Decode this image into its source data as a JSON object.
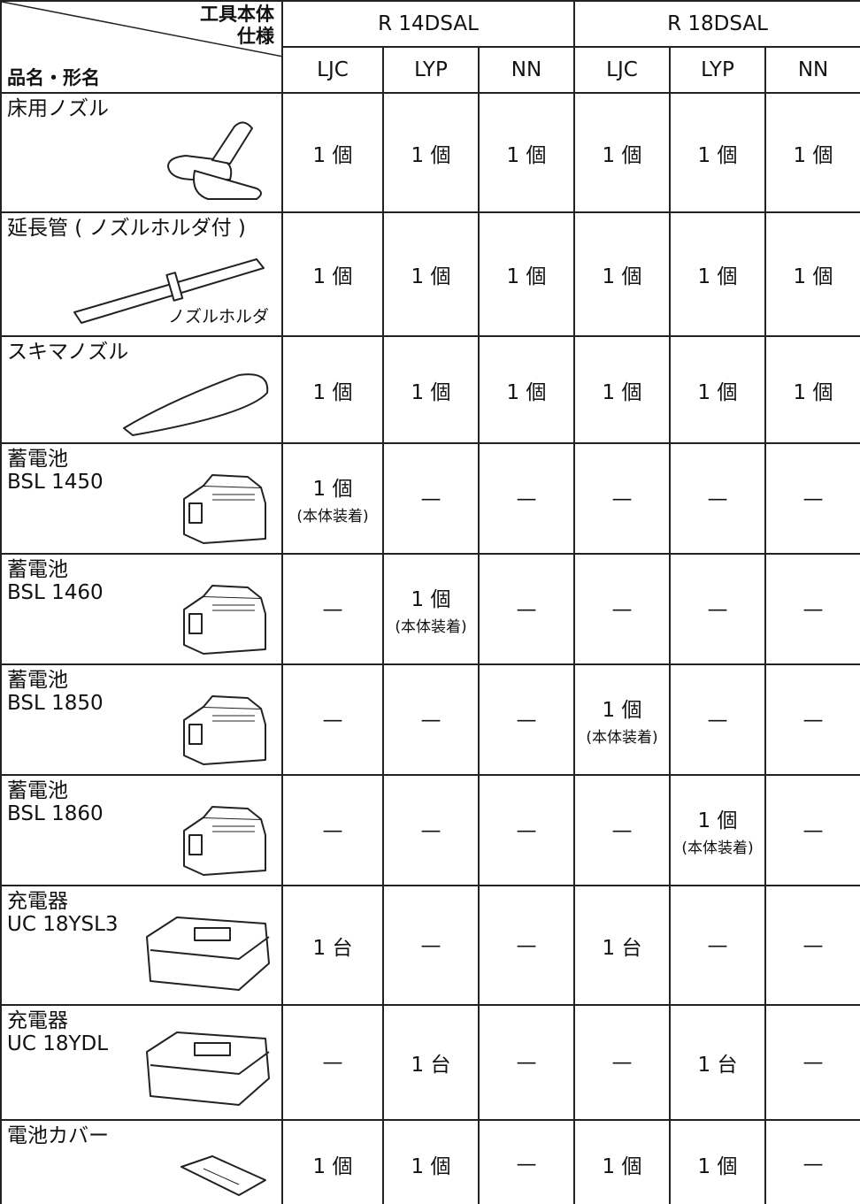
{
  "header": {
    "corner_top": [
      "工具本体",
      "仕様"
    ],
    "corner_bottom": "品名・形名",
    "groups": [
      "R 14DSAL",
      "R 18DSAL"
    ],
    "columns": [
      "LJC",
      "LYP",
      "NN",
      "LJC",
      "LYP",
      "NN"
    ]
  },
  "rows": [
    {
      "name": [
        "床用ノズル"
      ],
      "cells": [
        [
          "1 個"
        ],
        [
          "1 個"
        ],
        [
          "1 個"
        ],
        [
          "1 個"
        ],
        [
          "1 個"
        ],
        [
          "1 個"
        ]
      ]
    },
    {
      "name": [
        "延長管 ( ノズルホルダ付 )"
      ],
      "image_label": "ノズルホルダ",
      "cells": [
        [
          "1 個"
        ],
        [
          "1 個"
        ],
        [
          "1 個"
        ],
        [
          "1 個"
        ],
        [
          "1 個"
        ],
        [
          "1 個"
        ]
      ]
    },
    {
      "name": [
        "スキマノズル"
      ],
      "cells": [
        [
          "1 個"
        ],
        [
          "1 個"
        ],
        [
          "1 個"
        ],
        [
          "1 個"
        ],
        [
          "1 個"
        ],
        [
          "1 個"
        ]
      ]
    },
    {
      "name": [
        "蓄電池",
        "BSL 1450"
      ],
      "cells": [
        [
          "1 個",
          "(本体装着)"
        ],
        [
          "—"
        ],
        [
          "—"
        ],
        [
          "—"
        ],
        [
          "—"
        ],
        [
          "—"
        ]
      ]
    },
    {
      "name": [
        "蓄電池",
        "BSL 1460"
      ],
      "cells": [
        [
          "—"
        ],
        [
          "1 個",
          "(本体装着)"
        ],
        [
          "—"
        ],
        [
          "—"
        ],
        [
          "—"
        ],
        [
          "—"
        ]
      ]
    },
    {
      "name": [
        "蓄電池",
        "BSL 1850"
      ],
      "cells": [
        [
          "—"
        ],
        [
          "—"
        ],
        [
          "—"
        ],
        [
          "1 個",
          "(本体装着)"
        ],
        [
          "—"
        ],
        [
          "—"
        ]
      ]
    },
    {
      "name": [
        "蓄電池",
        "BSL 1860"
      ],
      "cells": [
        [
          "—"
        ],
        [
          "—"
        ],
        [
          "—"
        ],
        [
          "—"
        ],
        [
          "1 個",
          "(本体装着)"
        ],
        [
          "—"
        ]
      ]
    },
    {
      "name": [
        "充電器",
        "UC 18YSL3"
      ],
      "cells": [
        [
          "1 台"
        ],
        [
          "—"
        ],
        [
          "—"
        ],
        [
          "1 台"
        ],
        [
          "—"
        ],
        [
          "—"
        ]
      ]
    },
    {
      "name": [
        "充電器",
        "UC 18YDL"
      ],
      "cells": [
        [
          "—"
        ],
        [
          "1 台"
        ],
        [
          "—"
        ],
        [
          "—"
        ],
        [
          "1 台"
        ],
        [
          "—"
        ]
      ]
    },
    {
      "name": [
        "電池カバー"
      ],
      "cells": [
        [
          "1 個"
        ],
        [
          "1 個"
        ],
        [
          "—"
        ],
        [
          "1 個"
        ],
        [
          "1 個"
        ],
        [
          "—"
        ]
      ]
    }
  ]
}
